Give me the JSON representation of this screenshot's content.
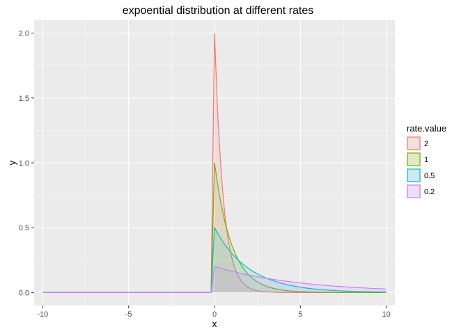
{
  "chart_data": {
    "type": "area",
    "title": "expoential distribution at different rates",
    "xlabel": "x",
    "ylabel": "y",
    "xlim": [
      -10.5,
      10.5
    ],
    "ylim": [
      -0.1,
      2.1
    ],
    "x_ticks": [
      -10,
      -5,
      0,
      5,
      10
    ],
    "x_tick_labels": [
      "-10",
      "-5",
      "0",
      "5",
      "10"
    ],
    "y_ticks": [
      0,
      0.5,
      1,
      1.5,
      2
    ],
    "y_tick_labels": [
      "0.0",
      "0.5",
      "1.0",
      "1.5",
      "2.0"
    ],
    "grid": true,
    "x_range": [
      -10,
      10
    ],
    "samples": 101,
    "legend": {
      "title": "rate.value",
      "placement": "right",
      "entries": [
        "2",
        "1",
        "0.5",
        "0.2"
      ]
    },
    "series": [
      {
        "name": "2",
        "rate": 2,
        "color": "#F8766D"
      },
      {
        "name": "1",
        "rate": 1,
        "color": "#7CAE00"
      },
      {
        "name": "0.5",
        "rate": 0.5,
        "color": "#00BFC4"
      },
      {
        "name": "0.2",
        "rate": 0.2,
        "color": "#C77CFF"
      }
    ]
  }
}
